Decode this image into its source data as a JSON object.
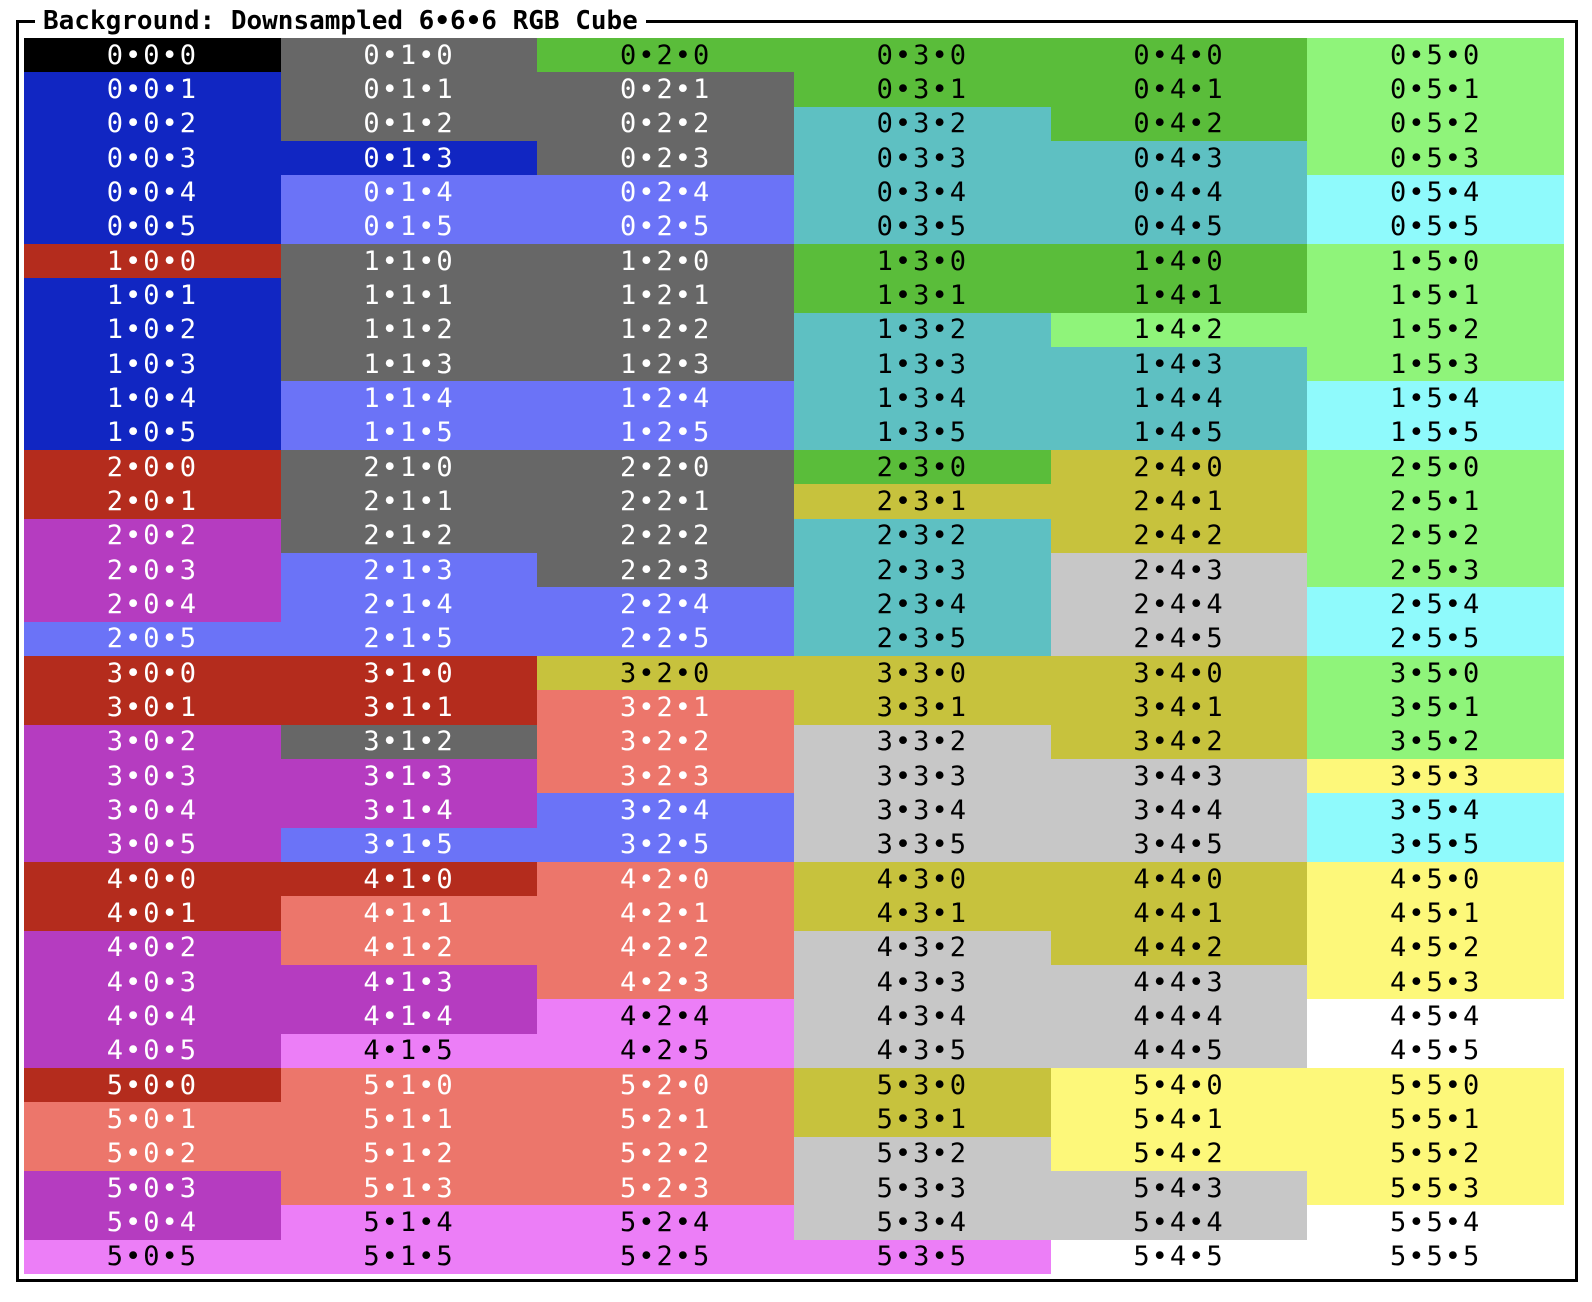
{
  "title": "Background: Downsampled 6•6•6 RGB Cube",
  "palette": {
    "k": {
      "bg": "#000000",
      "fg": "#ffffff"
    },
    "gr": {
      "bg": "#676767",
      "fg": "#ffffff"
    },
    "bl": {
      "bg": "#1126c2",
      "fg": "#ffffff"
    },
    "lb": {
      "bg": "#6b73f7",
      "fg": "#ffffff"
    },
    "re": {
      "bg": "#b42c1d",
      "fg": "#ffffff"
    },
    "sa": {
      "bg": "#ec766b",
      "fg": "#ffffff"
    },
    "pu": {
      "bg": "#b53cc0",
      "fg": "#ffffff"
    },
    "pk": {
      "bg": "#ec7ef7",
      "fg": "#000000"
    },
    "gn": {
      "bg": "#5abd3a",
      "fg": "#000000"
    },
    "lg": {
      "bg": "#8ff47a",
      "fg": "#000000"
    },
    "tl": {
      "bg": "#5ec0c2",
      "fg": "#000000"
    },
    "cy": {
      "bg": "#8ffafc",
      "fg": "#000000"
    },
    "ol": {
      "bg": "#c7c23d",
      "fg": "#000000"
    },
    "ye": {
      "bg": "#fdf87a",
      "fg": "#000000"
    },
    "sl": {
      "bg": "#c7c7c7",
      "fg": "#000000"
    },
    "wh": {
      "bg": "#ffffff",
      "fg": "#000000"
    }
  },
  "columns": [
    {
      "labels": [
        "0•0•0",
        "0•0•1",
        "0•0•2",
        "0•0•3",
        "0•0•4",
        "0•0•5",
        "1•0•0",
        "1•0•1",
        "1•0•2",
        "1•0•3",
        "1•0•4",
        "1•0•5",
        "2•0•0",
        "2•0•1",
        "2•0•2",
        "2•0•3",
        "2•0•4",
        "2•0•5",
        "3•0•0",
        "3•0•1",
        "3•0•2",
        "3•0•3",
        "3•0•4",
        "3•0•5",
        "4•0•0",
        "4•0•1",
        "4•0•2",
        "4•0•3",
        "4•0•4",
        "4•0•5",
        "5•0•0",
        "5•0•1",
        "5•0•2",
        "5•0•3",
        "5•0•4",
        "5•0•5"
      ],
      "colors": [
        "k",
        "bl",
        "bl",
        "bl",
        "bl",
        "bl",
        "re",
        "bl",
        "bl",
        "bl",
        "bl",
        "bl",
        "re",
        "re",
        "pu",
        "pu",
        "pu",
        "lb",
        "re",
        "re",
        "pu",
        "pu",
        "pu",
        "pu",
        "re",
        "re",
        "pu",
        "pu",
        "pu",
        "pu",
        "re",
        "sa",
        "sa",
        "pu",
        "pu",
        "pk"
      ]
    },
    {
      "labels": [
        "0•1•0",
        "0•1•1",
        "0•1•2",
        "0•1•3",
        "0•1•4",
        "0•1•5",
        "1•1•0",
        "1•1•1",
        "1•1•2",
        "1•1•3",
        "1•1•4",
        "1•1•5",
        "2•1•0",
        "2•1•1",
        "2•1•2",
        "2•1•3",
        "2•1•4",
        "2•1•5",
        "3•1•0",
        "3•1•1",
        "3•1•2",
        "3•1•3",
        "3•1•4",
        "3•1•5",
        "4•1•0",
        "4•1•1",
        "4•1•2",
        "4•1•3",
        "4•1•4",
        "4•1•5",
        "5•1•0",
        "5•1•1",
        "5•1•2",
        "5•1•3",
        "5•1•4",
        "5•1•5"
      ],
      "colors": [
        "gr",
        "gr",
        "gr",
        "bl",
        "lb",
        "lb",
        "gr",
        "gr",
        "gr",
        "gr",
        "lb",
        "lb",
        "gr",
        "gr",
        "gr",
        "lb",
        "lb",
        "lb",
        "re",
        "re",
        "gr",
        "pu",
        "pu",
        "lb",
        "re",
        "sa",
        "sa",
        "pu",
        "pu",
        "pk",
        "sa",
        "sa",
        "sa",
        "sa",
        "pk",
        "pk"
      ]
    },
    {
      "labels": [
        "0•2•0",
        "0•2•1",
        "0•2•2",
        "0•2•3",
        "0•2•4",
        "0•2•5",
        "1•2•0",
        "1•2•1",
        "1•2•2",
        "1•2•3",
        "1•2•4",
        "1•2•5",
        "2•2•0",
        "2•2•1",
        "2•2•2",
        "2•2•3",
        "2•2•4",
        "2•2•5",
        "3•2•0",
        "3•2•1",
        "3•2•2",
        "3•2•3",
        "3•2•4",
        "3•2•5",
        "4•2•0",
        "4•2•1",
        "4•2•2",
        "4•2•3",
        "4•2•4",
        "4•2•5",
        "5•2•0",
        "5•2•1",
        "5•2•2",
        "5•2•3",
        "5•2•4",
        "5•2•5"
      ],
      "colors": [
        "gn",
        "gr",
        "gr",
        "gr",
        "lb",
        "lb",
        "gr",
        "gr",
        "gr",
        "gr",
        "lb",
        "lb",
        "gr",
        "gr",
        "gr",
        "gr",
        "lb",
        "lb",
        "ol",
        "sa",
        "sa",
        "sa",
        "lb",
        "lb",
        "sa",
        "sa",
        "sa",
        "sa",
        "pk",
        "pk",
        "sa",
        "sa",
        "sa",
        "sa",
        "pk",
        "pk"
      ]
    },
    {
      "labels": [
        "0•3•0",
        "0•3•1",
        "0•3•2",
        "0•3•3",
        "0•3•4",
        "0•3•5",
        "1•3•0",
        "1•3•1",
        "1•3•2",
        "1•3•3",
        "1•3•4",
        "1•3•5",
        "2•3•0",
        "2•3•1",
        "2•3•2",
        "2•3•3",
        "2•3•4",
        "2•3•5",
        "3•3•0",
        "3•3•1",
        "3•3•2",
        "3•3•3",
        "3•3•4",
        "3•3•5",
        "4•3•0",
        "4•3•1",
        "4•3•2",
        "4•3•3",
        "4•3•4",
        "4•3•5",
        "5•3•0",
        "5•3•1",
        "5•3•2",
        "5•3•3",
        "5•3•4",
        "5•3•5"
      ],
      "colors": [
        "gn",
        "gn",
        "tl",
        "tl",
        "tl",
        "tl",
        "gn",
        "gn",
        "tl",
        "tl",
        "tl",
        "tl",
        "gn",
        "ol",
        "tl",
        "tl",
        "tl",
        "tl",
        "ol",
        "ol",
        "sl",
        "sl",
        "sl",
        "sl",
        "ol",
        "ol",
        "sl",
        "sl",
        "sl",
        "sl",
        "ol",
        "ol",
        "sl",
        "sl",
        "sl",
        "pk"
      ]
    },
    {
      "labels": [
        "0•4•0",
        "0•4•1",
        "0•4•2",
        "0•4•3",
        "0•4•4",
        "0•4•5",
        "1•4•0",
        "1•4•1",
        "1•4•2",
        "1•4•3",
        "1•4•4",
        "1•4•5",
        "2•4•0",
        "2•4•1",
        "2•4•2",
        "2•4•3",
        "2•4•4",
        "2•4•5",
        "3•4•0",
        "3•4•1",
        "3•4•2",
        "3•4•3",
        "3•4•4",
        "3•4•5",
        "4•4•0",
        "4•4•1",
        "4•4•2",
        "4•4•3",
        "4•4•4",
        "4•4•5",
        "5•4•0",
        "5•4•1",
        "5•4•2",
        "5•4•3",
        "5•4•4",
        "5•4•5"
      ],
      "colors": [
        "gn",
        "gn",
        "gn",
        "tl",
        "tl",
        "tl",
        "gn",
        "gn",
        "lg",
        "tl",
        "tl",
        "tl",
        "ol",
        "ol",
        "ol",
        "sl",
        "sl",
        "sl",
        "ol",
        "ol",
        "ol",
        "sl",
        "sl",
        "sl",
        "ol",
        "ol",
        "ol",
        "sl",
        "sl",
        "sl",
        "ye",
        "ye",
        "ye",
        "sl",
        "sl",
        "wh"
      ]
    },
    {
      "labels": [
        "0•5•0",
        "0•5•1",
        "0•5•2",
        "0•5•3",
        "0•5•4",
        "0•5•5",
        "1•5•0",
        "1•5•1",
        "1•5•2",
        "1•5•3",
        "1•5•4",
        "1•5•5",
        "2•5•0",
        "2•5•1",
        "2•5•2",
        "2•5•3",
        "2•5•4",
        "2•5•5",
        "3•5•0",
        "3•5•1",
        "3•5•2",
        "3•5•3",
        "3•5•4",
        "3•5•5",
        "4•5•0",
        "4•5•1",
        "4•5•2",
        "4•5•3",
        "4•5•4",
        "4•5•5",
        "5•5•0",
        "5•5•1",
        "5•5•2",
        "5•5•3",
        "5•5•4",
        "5•5•5"
      ],
      "colors": [
        "lg",
        "lg",
        "lg",
        "lg",
        "cy",
        "cy",
        "lg",
        "lg",
        "lg",
        "lg",
        "cy",
        "cy",
        "lg",
        "lg",
        "lg",
        "lg",
        "cy",
        "cy",
        "lg",
        "lg",
        "lg",
        "ye",
        "cy",
        "cy",
        "ye",
        "ye",
        "ye",
        "ye",
        "wh",
        "wh",
        "ye",
        "ye",
        "ye",
        "ye",
        "wh",
        "wh"
      ]
    }
  ]
}
